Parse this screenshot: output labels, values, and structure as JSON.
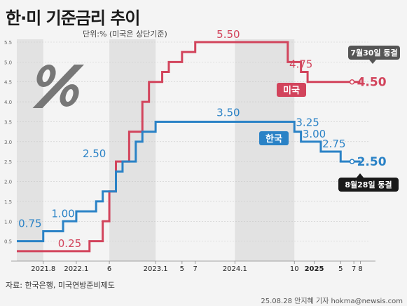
{
  "header": {
    "title": "한·미 기준금리 추이",
    "unit": "단위:% (미국은 상단기준)"
  },
  "footer": {
    "source": "자료: 한국은행, 미국연방준비제도",
    "credit": "25.08.28 안지혜 기자 hokma@newsis.com"
  },
  "colors": {
    "us": "#d2445c",
    "kr": "#2a82c6",
    "band": "#e2e2e2",
    "bg": "#f4f4f4"
  },
  "chart_data": {
    "type": "line",
    "title": "한·미 기준금리 추이",
    "xlim": [
      "2021-04",
      "2025-09"
    ],
    "ylim": [
      0,
      5.5
    ],
    "yticks": [
      "0.5",
      "1.0",
      "1.5",
      "2.0",
      "2.5",
      "3.0",
      "3.5",
      "4.0",
      "4.5",
      "5.0",
      "5.5"
    ],
    "xticks": [
      {
        "label": "2021.8",
        "x": "2021-08",
        "bold": false
      },
      {
        "label": "2022.1",
        "x": "2022-01",
        "bold": false
      },
      {
        "label": "6",
        "x": "2022-06",
        "bold": false
      },
      {
        "label": "2023.1",
        "x": "2023-01",
        "bold": false
      },
      {
        "label": "5",
        "x": "2023-05",
        "bold": false
      },
      {
        "label": "7",
        "x": "2023-07",
        "bold": false
      },
      {
        "label": "2024.1",
        "x": "2024-01",
        "bold": false
      },
      {
        "label": "10",
        "x": "2024-10",
        "bold": false
      },
      {
        "label": "2025",
        "x": "2025-01",
        "bold": true
      },
      {
        "label": "5",
        "x": "2025-05",
        "bold": false
      },
      {
        "label": "7",
        "x": "2025-07",
        "bold": false
      },
      {
        "label": "8",
        "x": "2025-08",
        "bold": false
      }
    ],
    "shaded_ranges": [
      [
        "2021-04",
        "2021-08"
      ],
      [
        "2022-06",
        "2023-01"
      ],
      [
        "2024-01",
        "2024-10"
      ]
    ],
    "series": [
      {
        "name": "미국",
        "key": "us",
        "steps": [
          [
            "2021-04",
            0.25
          ],
          [
            "2022-03",
            0.5
          ],
          [
            "2022-05",
            1.0
          ],
          [
            "2022-06",
            1.75
          ],
          [
            "2022-07",
            2.5
          ],
          [
            "2022-09",
            3.25
          ],
          [
            "2022-11",
            4.0
          ],
          [
            "2022-12",
            4.5
          ],
          [
            "2023-02",
            4.75
          ],
          [
            "2023-03",
            5.0
          ],
          [
            "2023-05",
            5.25
          ],
          [
            "2023-07",
            5.5
          ],
          [
            "2024-09",
            5.0
          ],
          [
            "2024-11",
            4.75
          ],
          [
            "2024-12",
            4.5
          ],
          [
            "2025-08",
            4.5
          ]
        ]
      },
      {
        "name": "한국",
        "key": "kr",
        "steps": [
          [
            "2021-04",
            0.5
          ],
          [
            "2021-08",
            0.75
          ],
          [
            "2021-11",
            1.0
          ],
          [
            "2022-01",
            1.25
          ],
          [
            "2022-04",
            1.5
          ],
          [
            "2022-05",
            1.75
          ],
          [
            "2022-07",
            2.25
          ],
          [
            "2022-08",
            2.5
          ],
          [
            "2022-10",
            3.0
          ],
          [
            "2022-11",
            3.25
          ],
          [
            "2023-01",
            3.5
          ],
          [
            "2024-10",
            3.25
          ],
          [
            "2024-11",
            3.0
          ],
          [
            "2025-02",
            2.75
          ],
          [
            "2025-05",
            2.5
          ],
          [
            "2025-08",
            2.5
          ]
        ]
      }
    ],
    "annotations": [
      {
        "series": "us",
        "text": "0.25",
        "x": "2021-12",
        "y": 0.25
      },
      {
        "series": "us",
        "text": "5.50",
        "x": "2023-12",
        "y": 5.5
      },
      {
        "series": "us",
        "text": "4.75",
        "x": "2024-11",
        "y": 4.75
      },
      {
        "series": "us",
        "text": "4.50",
        "x": "2025-08",
        "y": 4.5
      },
      {
        "series": "kr",
        "text": "0.75",
        "x": "2021-06",
        "y": 0.75
      },
      {
        "series": "kr",
        "text": "1.00",
        "x": "2021-11",
        "y": 1.0
      },
      {
        "series": "kr",
        "text": "2.50",
        "x": "2022-05",
        "y": 2.5
      },
      {
        "series": "kr",
        "text": "3.50",
        "x": "2023-12",
        "y": 3.5
      },
      {
        "series": "kr",
        "text": "3.25",
        "x": "2024-12",
        "y": 3.25
      },
      {
        "series": "kr",
        "text": "3.00",
        "x": "2025-01",
        "y": 3.0
      },
      {
        "series": "kr",
        "text": "2.75",
        "x": "2025-04",
        "y": 2.75
      },
      {
        "series": "kr",
        "text": "2.50",
        "x": "2025-08",
        "y": 2.5
      }
    ],
    "legend_labels": [
      {
        "series": "us",
        "text": "미국"
      },
      {
        "series": "kr",
        "text": "한국"
      }
    ],
    "callouts": [
      {
        "series": "us",
        "text": "7월30일 동결"
      },
      {
        "series": "kr",
        "text": "8월28일 동결"
      }
    ]
  }
}
